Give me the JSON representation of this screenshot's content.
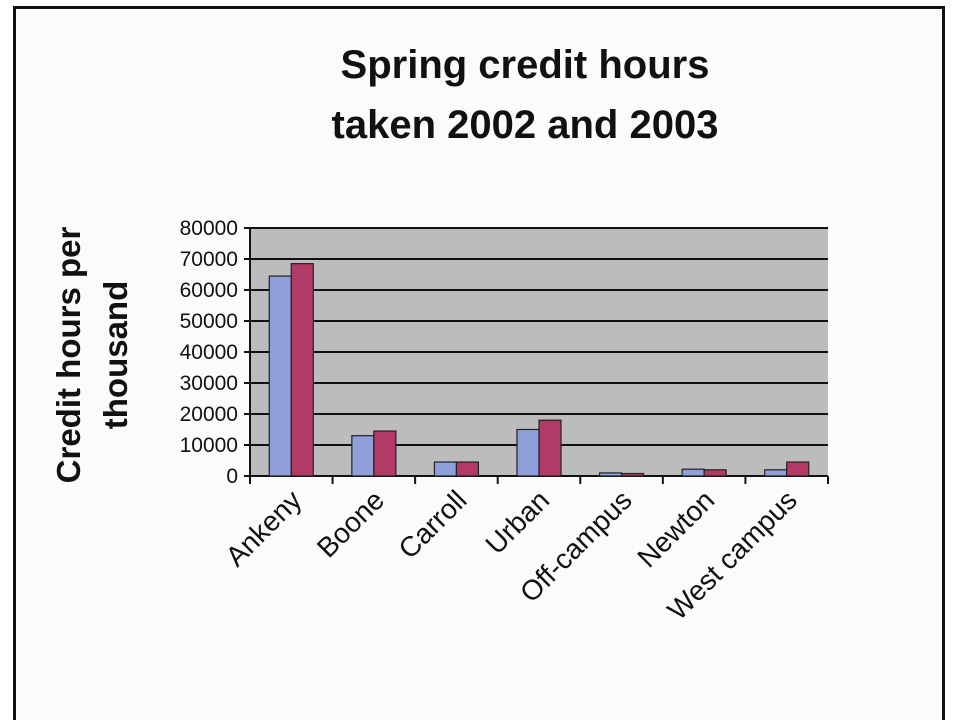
{
  "chart_data": {
    "type": "bar",
    "title": [
      "Spring credit hours",
      "taken 2002 and 2003"
    ],
    "xlabel": "",
    "ylabel": [
      "Credit hours per",
      "thousand"
    ],
    "categories": [
      "Ankeny",
      "Boone",
      "Carroll",
      "Urban",
      "Off-campus",
      "Newton",
      "West campus"
    ],
    "series": [
      {
        "values": [
          64500,
          13000,
          4500,
          15000,
          1000,
          2200,
          2000
        ]
      },
      {
        "values": [
          68500,
          14500,
          4500,
          18000,
          800,
          2000,
          4500
        ]
      }
    ],
    "ylim": [
      0,
      80000
    ],
    "yticks": [
      0,
      10000,
      20000,
      30000,
      40000,
      50000,
      60000,
      70000,
      80000
    ],
    "ytick_labels": [
      "0",
      "10000",
      "20000",
      "30000",
      "40000",
      "50000",
      "60000",
      "70000",
      "80000"
    ],
    "grid": true,
    "legend": "none",
    "colors": {
      "series": [
        "#8e9fd9",
        "#b23a67"
      ],
      "plot_background": "#bcbcbc",
      "gridline": "#111111"
    }
  }
}
